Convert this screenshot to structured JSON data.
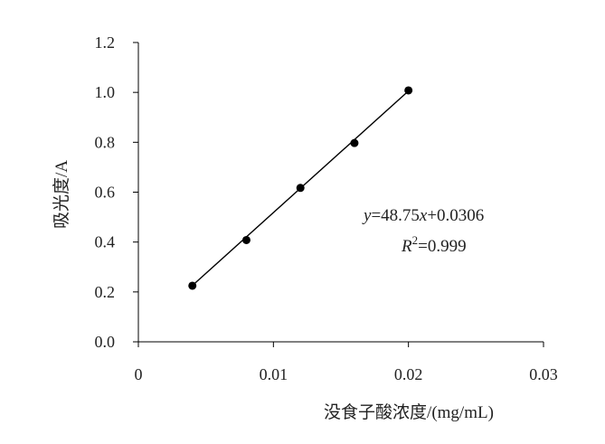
{
  "chart_data": {
    "type": "scatter",
    "title": "",
    "xlabel": "没食子酸浓度/(mg/mL)",
    "ylabel": "吸光度/A",
    "xlim": [
      0,
      0.03
    ],
    "ylim": [
      0,
      1.2
    ],
    "xticks": [
      0,
      0.01,
      0.02,
      0.03
    ],
    "xtick_labels": [
      "0",
      "0.01",
      "0.02",
      "0.03"
    ],
    "yticks": [
      0,
      0.2,
      0.4,
      0.6,
      0.8,
      1.0,
      1.2
    ],
    "ytick_labels": [
      "0.0",
      "0.2",
      "0.4",
      "0.6",
      "0.8",
      "1.0",
      "1.2"
    ],
    "grid": false,
    "legend": "none",
    "series": [
      {
        "x": [
          0.004,
          0.008,
          0.012,
          0.016,
          0.02
        ],
        "y": [
          0.225,
          0.408,
          0.617,
          0.797,
          1.008
        ],
        "marker": "filled-circle",
        "color": "#000000"
      }
    ],
    "trendline": {
      "slope": 48.75,
      "intercept": 0.0306,
      "x_range": [
        0.004,
        0.02
      ],
      "color": "#000000"
    },
    "annotations": {
      "equation": {
        "y_var": "y",
        "equals_coeff": "=48.75",
        "x_var": "x",
        "constant": "+0.0306"
      },
      "r_squared": {
        "symbol": "R",
        "power": "2",
        "value": "=0.999"
      }
    }
  }
}
